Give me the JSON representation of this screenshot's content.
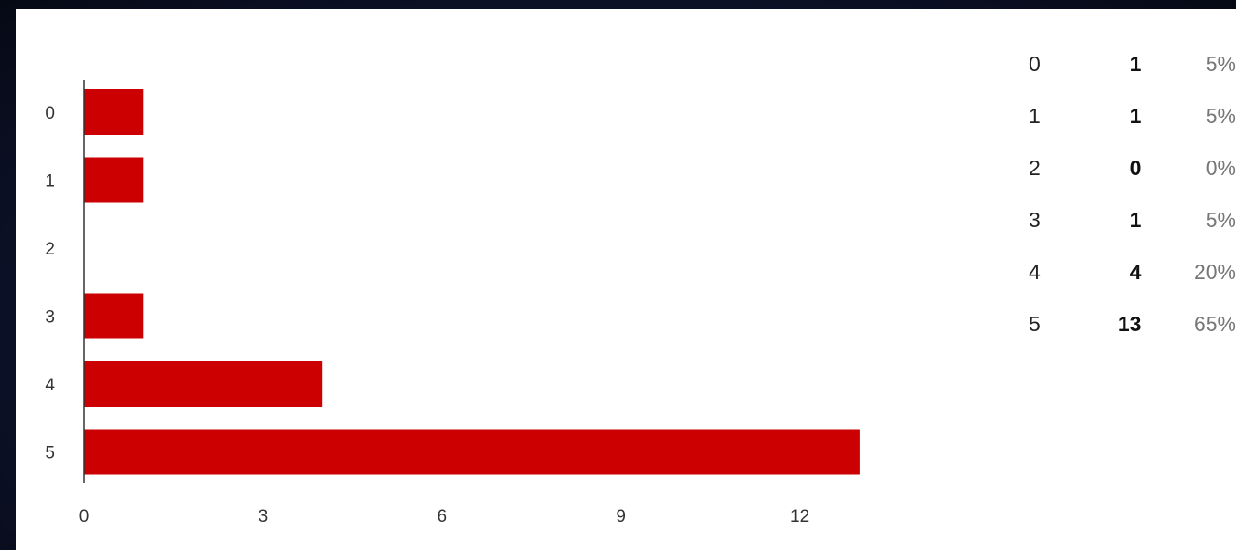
{
  "chart_data": {
    "type": "bar",
    "orientation": "horizontal",
    "categories": [
      "0",
      "1",
      "2",
      "3",
      "4",
      "5"
    ],
    "values": [
      1,
      1,
      0,
      1,
      4,
      13
    ],
    "xlim": [
      0,
      13
    ],
    "xticks": [
      "0",
      "3",
      "6",
      "9",
      "12"
    ],
    "bar_color": "#cc0000",
    "grid": false,
    "title": "",
    "xlabel": "",
    "ylabel": ""
  },
  "summary": {
    "rows": [
      {
        "category": "0",
        "count": "1",
        "percent": "5%"
      },
      {
        "category": "1",
        "count": "1",
        "percent": "5%"
      },
      {
        "category": "2",
        "count": "0",
        "percent": "0%"
      },
      {
        "category": "3",
        "count": "1",
        "percent": "5%"
      },
      {
        "category": "4",
        "count": "4",
        "percent": "20%"
      },
      {
        "category": "5",
        "count": "13",
        "percent": "65%"
      }
    ]
  }
}
